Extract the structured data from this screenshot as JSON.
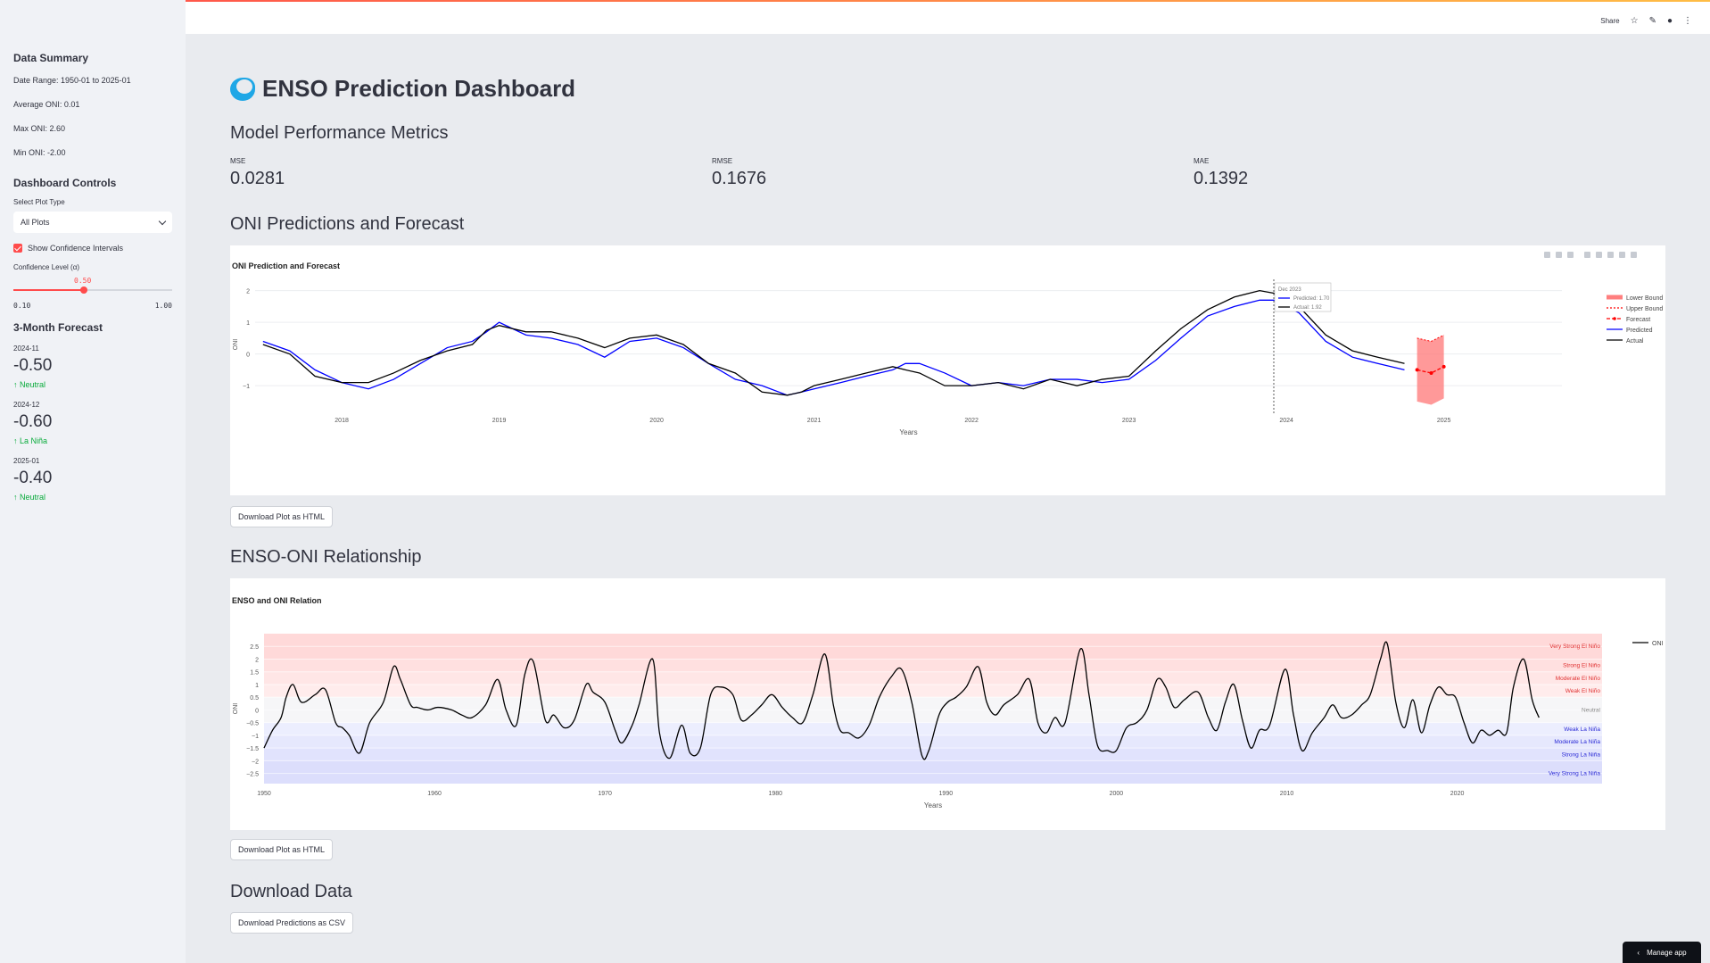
{
  "sidebar": {
    "summary_title": "Data Summary",
    "date_range": "Date Range: 1950-01 to 2025-01",
    "avg_oni": "Average ONI: 0.01",
    "max_oni": "Max ONI: 2.60",
    "min_oni": "Min ONI: -2.00",
    "controls_title": "Dashboard Controls",
    "plot_type_label": "Select Plot Type",
    "plot_type_value": "All Plots",
    "ci_label": "Show Confidence Intervals",
    "ci_checked": true,
    "confidence_label": "Confidence Level (α)",
    "confidence_value": "0.50",
    "confidence_fraction": 0.444,
    "confidence_min": "0.10",
    "confidence_max": "1.00",
    "forecast_title": "3-Month Forecast",
    "forecast": [
      {
        "date": "2024-11",
        "value": "-0.50",
        "category": "Neutral"
      },
      {
        "date": "2024-12",
        "value": "-0.60",
        "category": "La Niña"
      },
      {
        "date": "2025-01",
        "value": "-0.40",
        "category": "Neutral"
      }
    ]
  },
  "header": {
    "share_label": "Share",
    "icons": [
      "star-icon",
      "edit-icon",
      "github-icon",
      "more-icon"
    ]
  },
  "main": {
    "title": "ENSO Prediction Dashboard",
    "metrics_title": "Model Performance Metrics",
    "metrics": [
      {
        "label": "MSE",
        "value": "0.0281"
      },
      {
        "label": "RMSE",
        "value": "0.1676"
      },
      {
        "label": "MAE",
        "value": "0.1392"
      }
    ],
    "pred_section_title": "ONI Predictions and Forecast",
    "relation_section_title": "ENSO-ONI Relationship",
    "download_plot_label": "Download Plot as HTML",
    "download_data_title": "Download Data",
    "download_csv_label": "Download Predictions as CSV",
    "manage_app_label": "Manage app"
  },
  "chart_data": [
    {
      "type": "line",
      "title": "ONI Prediction and Forecast",
      "xlabel": "Years",
      "ylabel": "ONI",
      "xlim": [
        2017.45,
        2025.75
      ],
      "ylim": [
        -1.7,
        2.3
      ],
      "x_ticks": [
        "2018",
        "2019",
        "2020",
        "2021",
        "2022",
        "2023",
        "2024",
        "2025"
      ],
      "y_ticks": [
        "2",
        "1",
        "0",
        "−1"
      ],
      "legend": [
        "Lower Bound",
        "Upper Bound",
        "Forecast",
        "Predicted",
        "Actual"
      ],
      "legend_position": "right",
      "hover": {
        "date": "Dec 2023",
        "predicted": "Predicted: 1.70",
        "actual": "Actual: 1.92"
      },
      "hover_x": 2023.92,
      "colors": {
        "actual": "#000000",
        "predicted": "#0000ff",
        "forecast": "#ff0000",
        "band": "#ff7f7f"
      },
      "series": [
        {
          "name": "Actual",
          "x": [
            2017.5,
            2017.67,
            2017.83,
            2018.0,
            2018.17,
            2018.33,
            2018.5,
            2018.67,
            2018.83,
            2018.92,
            2019.0,
            2019.17,
            2019.33,
            2019.5,
            2019.67,
            2019.83,
            2020.0,
            2020.17,
            2020.33,
            2020.5,
            2020.67,
            2020.83,
            2020.92,
            2021.0,
            2021.17,
            2021.33,
            2021.5,
            2021.58,
            2021.67,
            2021.83,
            2022.0,
            2022.17,
            2022.33,
            2022.5,
            2022.67,
            2022.83,
            2023.0,
            2023.17,
            2023.33,
            2023.5,
            2023.67,
            2023.83,
            2023.92,
            2024.08,
            2024.25,
            2024.42,
            2024.58,
            2024.75
          ],
          "y": [
            0.3,
            0.0,
            -0.7,
            -0.9,
            -0.9,
            -0.6,
            -0.2,
            0.1,
            0.3,
            0.75,
            0.9,
            0.7,
            0.7,
            0.5,
            0.2,
            0.5,
            0.6,
            0.3,
            -0.3,
            -0.6,
            -1.2,
            -1.3,
            -1.2,
            -1.0,
            -0.8,
            -0.6,
            -0.4,
            -0.5,
            -0.6,
            -1.0,
            -1.0,
            -0.9,
            -1.1,
            -0.8,
            -1.0,
            -0.8,
            -0.7,
            0.1,
            0.8,
            1.4,
            1.8,
            2.0,
            1.92,
            1.5,
            0.6,
            0.1,
            -0.1,
            -0.3
          ]
        },
        {
          "name": "Predicted",
          "x": [
            2017.5,
            2017.67,
            2017.83,
            2018.0,
            2018.17,
            2018.33,
            2018.5,
            2018.67,
            2018.83,
            2018.92,
            2019.0,
            2019.17,
            2019.33,
            2019.5,
            2019.67,
            2019.83,
            2020.0,
            2020.17,
            2020.33,
            2020.5,
            2020.67,
            2020.83,
            2020.92,
            2021.0,
            2021.17,
            2021.33,
            2021.5,
            2021.58,
            2021.67,
            2021.83,
            2022.0,
            2022.17,
            2022.33,
            2022.5,
            2022.67,
            2022.83,
            2023.0,
            2023.17,
            2023.33,
            2023.5,
            2023.67,
            2023.83,
            2023.92,
            2024.08,
            2024.25,
            2024.42,
            2024.58,
            2024.75
          ],
          "y": [
            0.4,
            0.1,
            -0.5,
            -0.9,
            -1.1,
            -0.8,
            -0.3,
            0.2,
            0.4,
            0.7,
            1.0,
            0.6,
            0.5,
            0.3,
            -0.1,
            0.4,
            0.5,
            0.2,
            -0.3,
            -0.8,
            -1.0,
            -1.3,
            -1.2,
            -1.1,
            -0.9,
            -0.7,
            -0.5,
            -0.3,
            -0.3,
            -0.6,
            -1.0,
            -0.9,
            -1.0,
            -0.8,
            -0.8,
            -0.9,
            -0.8,
            -0.2,
            0.5,
            1.2,
            1.5,
            1.7,
            1.7,
            1.3,
            0.4,
            -0.1,
            -0.3,
            -0.5
          ]
        },
        {
          "name": "Forecast",
          "x": [
            2024.83,
            2024.92,
            2025.0
          ],
          "y": [
            -0.5,
            -0.6,
            -0.4
          ]
        },
        {
          "name": "Upper Bound",
          "x": [
            2024.83,
            2024.92,
            2025.0
          ],
          "y": [
            0.5,
            0.4,
            0.6
          ]
        },
        {
          "name": "Lower Bound",
          "x": [
            2024.83,
            2024.92,
            2025.0
          ],
          "y": [
            -1.5,
            -1.6,
            -1.4
          ]
        }
      ]
    },
    {
      "type": "line",
      "title": "ENSO and ONI Relation",
      "xlabel": "Years",
      "ylabel": "ONI",
      "xlim": [
        1950,
        2028.5
      ],
      "ylim": [
        -2.9,
        3.0
      ],
      "x_ticks": [
        "1950",
        "1960",
        "1970",
        "1980",
        "1990",
        "2000",
        "2010",
        "2020"
      ],
      "y_ticks": [
        "2.5",
        "2",
        "1.5",
        "1",
        "0.5",
        "0",
        "−0.5",
        "−1",
        "−1.5",
        "−2",
        "−2.5"
      ],
      "legend": [
        "ONI"
      ],
      "legend_position": "top-right",
      "bands": [
        {
          "label": "Very Strong El Niño",
          "y": 2.5,
          "color": "#e03131"
        },
        {
          "label": "Strong El Niño",
          "y": 1.75,
          "color": "#e03131"
        },
        {
          "label": "Moderate El Niño",
          "y": 1.25,
          "color": "#e03131"
        },
        {
          "label": "Weak El Niño",
          "y": 0.75,
          "color": "#e03131"
        },
        {
          "label": "Neutral",
          "y": 0.0,
          "color": "#888888"
        },
        {
          "label": "Weak La Niña",
          "y": -0.75,
          "color": "#2b2bd6"
        },
        {
          "label": "Moderate La Niña",
          "y": -1.25,
          "color": "#2b2bd6"
        },
        {
          "label": "Strong La Niña",
          "y": -1.75,
          "color": "#2b2bd6"
        },
        {
          "label": "Very Strong La Niña",
          "y": -2.5,
          "color": "#2b2bd6"
        }
      ],
      "series": [
        {
          "name": "ONI",
          "x": [
            1950.0,
            1950.5,
            1951.0,
            1951.3,
            1951.7,
            1952.2,
            1953.0,
            1953.6,
            1954.2,
            1954.6,
            1955.0,
            1955.6,
            1956.2,
            1957.0,
            1957.6,
            1958.0,
            1958.6,
            1959.0,
            1959.6,
            1960.2,
            1961.0,
            1961.6,
            1962.2,
            1963.0,
            1963.7,
            1964.2,
            1964.8,
            1965.3,
            1965.8,
            1966.5,
            1967.0,
            1967.6,
            1968.2,
            1968.9,
            1969.3,
            1970.0,
            1970.6,
            1971.0,
            1971.6,
            1972.0,
            1972.8,
            1973.2,
            1973.8,
            1974.5,
            1975.0,
            1975.6,
            1976.2,
            1976.8,
            1977.5,
            1978.0,
            1978.6,
            1979.2,
            1979.8,
            1980.4,
            1981.0,
            1981.6,
            1982.2,
            1982.9,
            1983.4,
            1983.8,
            1984.3,
            1984.9,
            1985.5,
            1986.1,
            1986.8,
            1987.4,
            1988.0,
            1988.6,
            1989.0,
            1989.6,
            1990.1,
            1990.6,
            1991.2,
            1991.9,
            1992.4,
            1992.9,
            1993.4,
            1994.2,
            1994.9,
            1995.4,
            1995.9,
            1996.4,
            1997.0,
            1997.9,
            1998.4,
            1998.9,
            1999.5,
            2000.0,
            2000.6,
            2001.2,
            2001.8,
            2002.4,
            2002.9,
            2003.4,
            2004.0,
            2004.8,
            2005.4,
            2005.9,
            2006.4,
            2006.9,
            2007.4,
            2007.9,
            2008.4,
            2009.0,
            2009.9,
            2010.4,
            2010.9,
            2011.5,
            2012.2,
            2012.7,
            2013.2,
            2013.8,
            2014.4,
            2014.9,
            2015.5,
            2015.9,
            2016.4,
            2016.9,
            2017.4,
            2017.9,
            2018.4,
            2018.9,
            2019.4,
            2019.9,
            2020.4,
            2020.9,
            2021.4,
            2021.9,
            2022.4,
            2022.9,
            2023.3,
            2023.9,
            2024.4,
            2024.8
          ],
          "y": [
            -1.5,
            -0.8,
            -0.3,
            0.5,
            1.0,
            0.3,
            0.6,
            0.8,
            -0.5,
            -0.7,
            -1.0,
            -1.7,
            -0.5,
            0.3,
            1.7,
            1.2,
            0.2,
            0.1,
            0.0,
            0.1,
            0.0,
            -0.2,
            -0.3,
            0.2,
            1.2,
            0.0,
            -0.6,
            1.4,
            1.9,
            -0.4,
            -0.2,
            -0.7,
            -0.4,
            1.0,
            0.7,
            0.3,
            -0.8,
            -1.3,
            -0.6,
            0.2,
            2.0,
            -0.9,
            -1.9,
            -0.6,
            -1.7,
            -1.5,
            0.6,
            0.9,
            0.6,
            -0.4,
            -0.2,
            0.2,
            0.6,
            0.1,
            -0.3,
            -0.5,
            0.6,
            2.2,
            0.2,
            -0.8,
            -0.9,
            -1.1,
            -0.6,
            0.5,
            1.3,
            1.6,
            0.3,
            -1.8,
            -1.6,
            -0.2,
            0.3,
            0.5,
            0.9,
            1.7,
            0.3,
            -0.2,
            0.2,
            0.6,
            1.2,
            -0.5,
            -0.9,
            -0.3,
            -0.5,
            2.4,
            0.6,
            -1.4,
            -1.6,
            -1.6,
            -0.7,
            -0.5,
            0.0,
            1.2,
            0.9,
            0.1,
            0.4,
            0.7,
            -0.3,
            -0.8,
            0.3,
            1.0,
            -0.4,
            -1.5,
            -0.8,
            -0.6,
            1.6,
            -0.2,
            -1.6,
            -0.9,
            -0.3,
            0.2,
            -0.3,
            -0.2,
            0.2,
            0.6,
            2.0,
            2.6,
            0.3,
            -0.7,
            0.4,
            -0.9,
            0.2,
            0.9,
            0.6,
            0.5,
            -0.5,
            -1.3,
            -0.8,
            -1.0,
            -0.8,
            -0.9,
            0.9,
            2.0,
            0.4,
            -0.3
          ]
        }
      ]
    }
  ]
}
